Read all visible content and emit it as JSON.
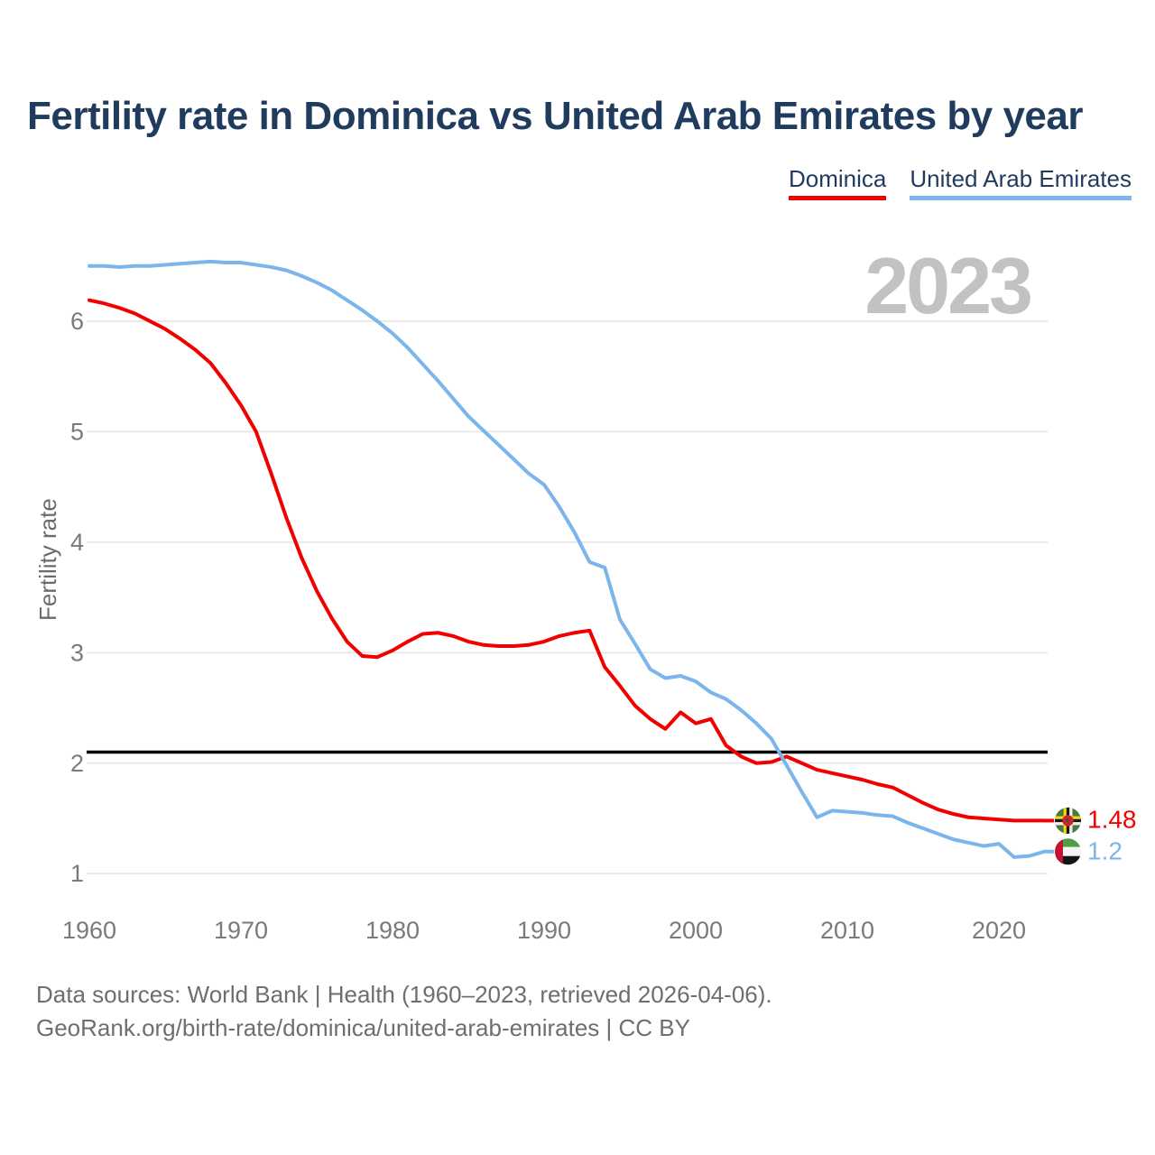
{
  "title": "Fertility rate in Dominica vs United Arab Emirates by year",
  "watermark": "2023",
  "legend": {
    "items": [
      {
        "label": "Dominica",
        "color": "#f20000"
      },
      {
        "label": "United Arab Emirates",
        "color": "#7cb5ec"
      }
    ]
  },
  "y_axis": {
    "title": "Fertility rate",
    "ticks": [
      6,
      5,
      4,
      3,
      2,
      1
    ]
  },
  "x_axis": {
    "ticks": [
      1960,
      1970,
      1980,
      1990,
      2000,
      2010,
      2020
    ]
  },
  "reference_line": {
    "value": 2.1,
    "color": "#000000"
  },
  "end_labels": [
    {
      "series": "Dominica",
      "value": "1.48",
      "flag": "dominica-flag"
    },
    {
      "series": "United Arab Emirates",
      "value": "1.2",
      "flag": "uae-flag"
    }
  ],
  "footer": {
    "line1": "Data sources: World Bank | Health (1960–2023, retrieved 2026-04-06).",
    "line2": "GeoRank.org/birth-rate/dominica/united-arab-emirates | CC BY"
  },
  "colors": {
    "title_text": "#1f3b5e",
    "axis_text": "#7a7a7a",
    "gridline": "#e8e8e8",
    "watermark": "#c2c2c2",
    "footer_text": "#6e6e6e",
    "dominica": "#f20000",
    "uae": "#7cb5ec",
    "reference": "#000000"
  },
  "chart_data": {
    "type": "line",
    "title": "Fertility rate in Dominica vs United Arab Emirates by year",
    "xlabel": "",
    "ylabel": "Fertility rate",
    "xlim": [
      1960,
      2023
    ],
    "ylim": [
      0.9,
      6.8
    ],
    "grid": "horizontal",
    "legend_position": "top-right",
    "annotations": {
      "watermark_year": "2023",
      "reference_line_y": 2.1
    },
    "x": [
      1960,
      1961,
      1962,
      1963,
      1964,
      1965,
      1966,
      1967,
      1968,
      1969,
      1970,
      1971,
      1972,
      1973,
      1974,
      1975,
      1976,
      1977,
      1978,
      1979,
      1980,
      1981,
      1982,
      1983,
      1984,
      1985,
      1986,
      1987,
      1988,
      1989,
      1990,
      1991,
      1992,
      1993,
      1994,
      1995,
      1996,
      1997,
      1998,
      1999,
      2000,
      2001,
      2002,
      2003,
      2004,
      2005,
      2006,
      2007,
      2008,
      2009,
      2010,
      2011,
      2012,
      2013,
      2014,
      2015,
      2016,
      2017,
      2018,
      2019,
      2020,
      2021,
      2022,
      2023
    ],
    "series": [
      {
        "name": "Dominica",
        "color": "#f20000",
        "end_value": 1.48,
        "values": [
          6.19,
          6.16,
          6.12,
          6.07,
          6.0,
          5.93,
          5.84,
          5.74,
          5.62,
          5.44,
          5.24,
          5.0,
          4.62,
          4.22,
          3.86,
          3.56,
          3.31,
          3.1,
          2.97,
          2.96,
          3.02,
          3.1,
          3.17,
          3.18,
          3.15,
          3.1,
          3.07,
          3.06,
          3.06,
          3.07,
          3.1,
          3.15,
          3.18,
          3.2,
          2.87,
          2.7,
          2.52,
          2.4,
          2.31,
          2.46,
          2.36,
          2.4,
          2.16,
          2.06,
          2.0,
          2.01,
          2.06,
          2.0,
          1.94,
          1.91,
          1.88,
          1.85,
          1.81,
          1.78,
          1.71,
          1.64,
          1.58,
          1.54,
          1.51,
          1.5,
          1.49,
          1.48,
          1.48,
          1.48
        ]
      },
      {
        "name": "United Arab Emirates",
        "color": "#7cb5ec",
        "end_value": 1.2,
        "values": [
          6.5,
          6.5,
          6.49,
          6.5,
          6.5,
          6.51,
          6.52,
          6.53,
          6.54,
          6.53,
          6.53,
          6.51,
          6.49,
          6.46,
          6.41,
          6.35,
          6.28,
          6.19,
          6.1,
          6.0,
          5.89,
          5.76,
          5.61,
          5.46,
          5.3,
          5.14,
          5.01,
          4.88,
          4.75,
          4.62,
          4.52,
          4.32,
          4.09,
          3.82,
          3.77,
          3.3,
          3.08,
          2.85,
          2.77,
          2.79,
          2.74,
          2.64,
          2.58,
          2.48,
          2.36,
          2.22,
          1.98,
          1.74,
          1.51,
          1.57,
          1.56,
          1.55,
          1.53,
          1.52,
          1.46,
          1.41,
          1.36,
          1.31,
          1.28,
          1.25,
          1.27,
          1.15,
          1.16,
          1.2
        ]
      }
    ]
  }
}
